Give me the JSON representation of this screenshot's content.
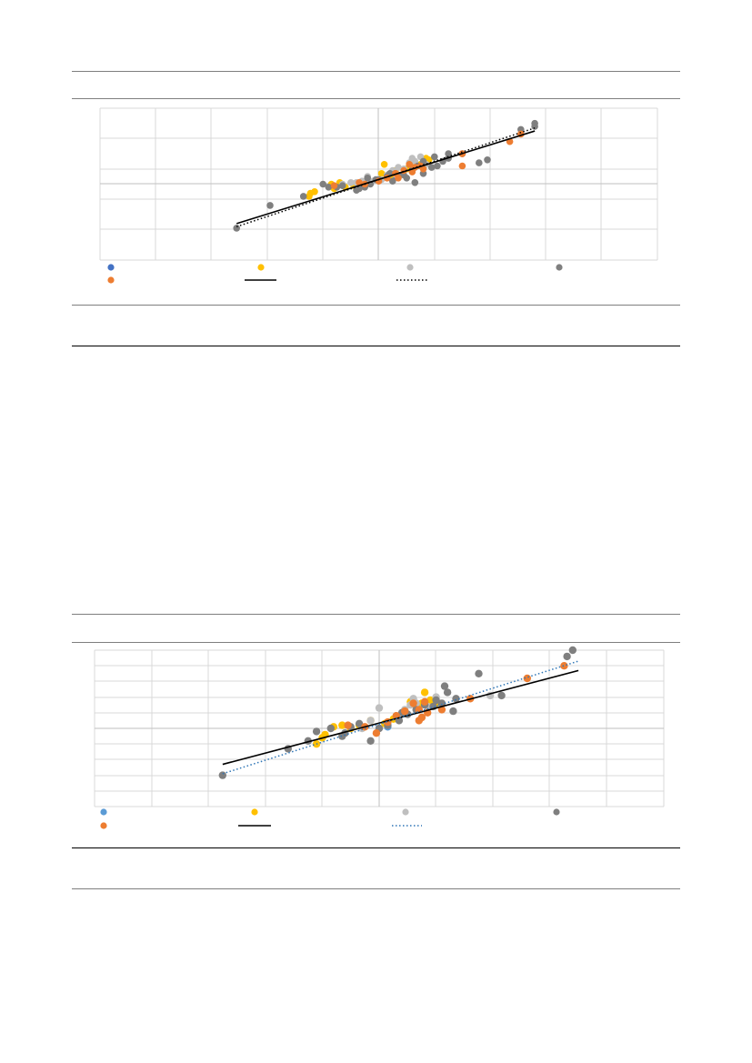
{
  "chart_data": [
    {
      "type": "scatter",
      "grid": true,
      "legend_position": "bottom",
      "series": [
        {
          "color": "#4472c4",
          "points": [
            [
              0.5,
              0.25
            ]
          ]
        },
        {
          "color": "#ffc000",
          "points": [
            [
              -2.5,
              -0.8
            ],
            [
              -2.45,
              -0.6
            ],
            [
              -2.3,
              -0.5
            ],
            [
              -1.7,
              0.0
            ],
            [
              -1.6,
              -0.3
            ],
            [
              -1.4,
              0.1
            ],
            [
              -1.2,
              -0.2
            ],
            [
              -0.9,
              -0.1
            ],
            [
              0.1,
              0.7
            ],
            [
              0.4,
              0.5
            ],
            [
              0.6,
              0.9
            ],
            [
              1.0,
              1.0
            ],
            [
              1.5,
              1.3
            ],
            [
              1.7,
              1.7
            ],
            [
              1.8,
              1.6
            ],
            [
              0.2,
              1.3
            ],
            [
              0.5,
              0.8
            ],
            [
              1.3,
              1.2
            ]
          ]
        },
        {
          "color": "#bfbfbf",
          "points": [
            [
              -1.3,
              0.0
            ],
            [
              -1.0,
              0.1
            ],
            [
              -0.6,
              0.2
            ],
            [
              -0.4,
              0.5
            ],
            [
              -0.2,
              0.2
            ],
            [
              0.3,
              0.6
            ],
            [
              0.7,
              1.1
            ],
            [
              0.9,
              1.0
            ],
            [
              1.1,
              1.4
            ],
            [
              1.3,
              1.5
            ],
            [
              1.5,
              1.8
            ],
            [
              1.7,
              1.3
            ],
            [
              0.5,
              0.9
            ],
            [
              1.2,
              1.7
            ],
            [
              -0.8,
              0.1
            ],
            [
              0.1,
              0.3
            ]
          ]
        },
        {
          "color": "#7f7f7f",
          "points": [
            [
              -5.1,
              -2.9
            ],
            [
              -3.9,
              -1.4
            ],
            [
              -2.0,
              0.0
            ],
            [
              -1.8,
              -0.2
            ],
            [
              -1.3,
              -0.1
            ],
            [
              -0.8,
              -0.4
            ],
            [
              -0.5,
              -0.2
            ],
            [
              -0.3,
              0.0
            ],
            [
              0.0,
              0.3
            ],
            [
              0.3,
              0.5
            ],
            [
              0.5,
              0.2
            ],
            [
              0.9,
              0.6
            ],
            [
              1.2,
              0.9
            ],
            [
              1.4,
              1.2
            ],
            [
              1.6,
              1.5
            ],
            [
              2.0,
              1.8
            ],
            [
              2.5,
              1.7
            ],
            [
              3.0,
              2.0
            ],
            [
              3.6,
              1.4
            ],
            [
              3.9,
              1.6
            ],
            [
              5.1,
              3.6
            ],
            [
              5.6,
              3.8
            ],
            [
              5.6,
              4.0
            ],
            [
              1.3,
              0.1
            ],
            [
              1.6,
              0.7
            ],
            [
              2.1,
              1.2
            ],
            [
              2.5,
              2.0
            ],
            [
              2.3,
              1.5
            ],
            [
              0.6,
              0.7
            ],
            [
              -1.5,
              -0.2
            ],
            [
              -2.7,
              -0.8
            ],
            [
              -0.7,
              -0.3
            ],
            [
              -0.4,
              0.4
            ],
            [
              0.7,
              0.6
            ],
            [
              1.0,
              0.4
            ],
            [
              -0.1,
              0.3
            ],
            [
              0.4,
              0.7
            ],
            [
              1.9,
              1.1
            ]
          ]
        },
        {
          "color": "#ed7d31",
          "points": [
            [
              -1.6,
              -0.1
            ],
            [
              -0.7,
              0.1
            ],
            [
              -0.5,
              0.0
            ],
            [
              0.0,
              0.2
            ],
            [
              0.3,
              0.4
            ],
            [
              0.6,
              0.7
            ],
            [
              0.9,
              0.9
            ],
            [
              1.1,
              1.3
            ],
            [
              1.3,
              1.1
            ],
            [
              1.6,
              1.0
            ],
            [
              3.0,
              1.2
            ],
            [
              4.7,
              2.8
            ],
            [
              5.1,
              3.3
            ],
            [
              1.2,
              0.8
            ],
            [
              3.0,
              2.0
            ],
            [
              0.7,
              0.4
            ],
            [
              1.5,
              1.2
            ]
          ]
        }
      ],
      "trendlines": [
        {
          "style": "solid",
          "color": "#000000",
          "from": [
            -5.1,
            -2.6
          ],
          "to": [
            5.6,
            3.5
          ]
        },
        {
          "style": "dotted",
          "color": "#000000",
          "from": [
            -5.1,
            -2.8
          ],
          "to": [
            5.6,
            3.7
          ]
        }
      ]
    },
    {
      "type": "scatter",
      "grid": true,
      "legend_position": "bottom",
      "series": [
        {
          "color": "#5b9bd5",
          "points": [
            [
              0.3,
              0.1
            ]
          ]
        },
        {
          "color": "#ffc000",
          "points": [
            [
              -2.2,
              -1.0
            ],
            [
              -2.0,
              -0.6
            ],
            [
              -1.9,
              -0.4
            ],
            [
              -1.6,
              0.1
            ],
            [
              -1.3,
              0.2
            ],
            [
              -1.0,
              0.0
            ],
            [
              -0.7,
              0.2
            ],
            [
              -0.3,
              0.5
            ],
            [
              0.2,
              0.3
            ],
            [
              1.5,
              1.6
            ],
            [
              1.6,
              2.3
            ],
            [
              1.8,
              1.8
            ],
            [
              2.0,
              1.6
            ],
            [
              1.1,
              1.7
            ],
            [
              0.5,
              0.6
            ]
          ]
        },
        {
          "color": "#bfbfbf",
          "points": [
            [
              0.0,
              1.3
            ],
            [
              0.3,
              0.3
            ],
            [
              0.6,
              0.8
            ],
            [
              0.9,
              1.2
            ],
            [
              1.1,
              1.5
            ],
            [
              1.3,
              1.6
            ],
            [
              1.7,
              1.4
            ],
            [
              2.0,
              2.0
            ],
            [
              3.9,
              2.1
            ],
            [
              -0.6,
              0.0
            ],
            [
              -0.3,
              0.5
            ],
            [
              1.2,
              1.9
            ]
          ]
        },
        {
          "color": "#7f7f7f",
          "points": [
            [
              -5.5,
              -3.0
            ],
            [
              -3.2,
              -1.3
            ],
            [
              -2.5,
              -0.8
            ],
            [
              -2.2,
              -0.2
            ],
            [
              -1.7,
              0.0
            ],
            [
              -1.3,
              -0.5
            ],
            [
              -1.0,
              0.1
            ],
            [
              -0.7,
              0.3
            ],
            [
              -0.3,
              -0.8
            ],
            [
              0.0,
              0.0
            ],
            [
              0.3,
              0.2
            ],
            [
              0.7,
              0.5
            ],
            [
              1.0,
              0.9
            ],
            [
              1.3,
              1.2
            ],
            [
              1.6,
              1.5
            ],
            [
              2.0,
              1.8
            ],
            [
              2.4,
              2.3
            ],
            [
              2.7,
              1.9
            ],
            [
              2.6,
              1.1
            ],
            [
              3.5,
              3.5
            ],
            [
              4.3,
              2.1
            ],
            [
              6.6,
              4.6
            ],
            [
              6.8,
              5.0
            ],
            [
              2.3,
              2.7
            ],
            [
              1.9,
              1.4
            ],
            [
              0.8,
              1.0
            ],
            [
              -1.2,
              -0.3
            ],
            [
              2.2,
              1.6
            ]
          ]
        },
        {
          "color": "#ed7d31",
          "points": [
            [
              -1.1,
              0.2
            ],
            [
              -0.5,
              0.1
            ],
            [
              0.3,
              0.4
            ],
            [
              0.6,
              0.8
            ],
            [
              0.9,
              1.1
            ],
            [
              1.2,
              1.6
            ],
            [
              1.4,
              0.5
            ],
            [
              1.5,
              0.7
            ],
            [
              1.7,
              1.0
            ],
            [
              2.2,
              1.2
            ],
            [
              3.2,
              1.9
            ],
            [
              5.2,
              3.2
            ],
            [
              6.5,
              4.0
            ],
            [
              1.6,
              1.7
            ],
            [
              -0.1,
              -0.3
            ],
            [
              1.4,
              1.2
            ]
          ]
        }
      ],
      "trendlines": [
        {
          "style": "solid",
          "color": "#000000",
          "from": [
            -5.5,
            -2.3
          ],
          "to": [
            7.0,
            3.7
          ]
        },
        {
          "style": "dotted",
          "color": "#2e75b6",
          "from": [
            -5.5,
            -2.9
          ],
          "to": [
            7.0,
            4.3
          ]
        }
      ]
    }
  ]
}
